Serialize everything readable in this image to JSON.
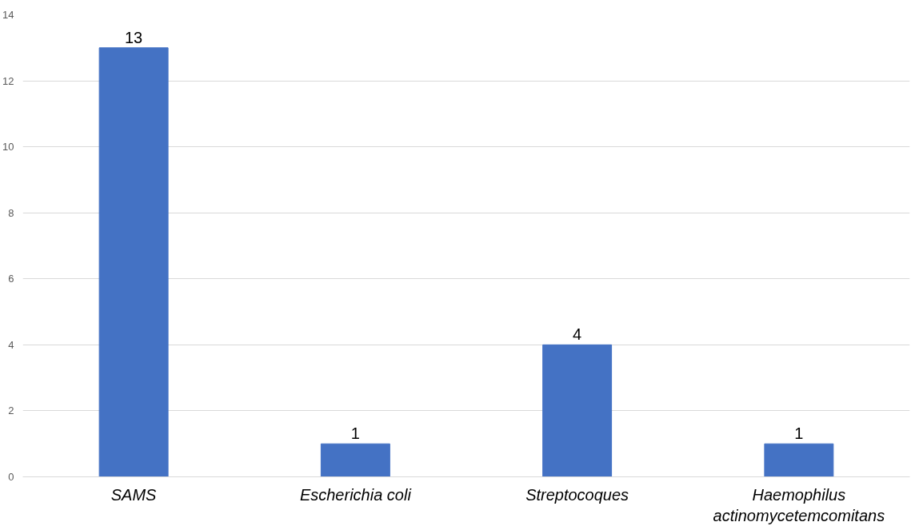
{
  "chart_data": {
    "type": "bar",
    "categories": [
      "SAMS",
      "Escherichia coli",
      "Streptocoques",
      "Haemophilus actinomycetemcomitans"
    ],
    "values": [
      13,
      1,
      4,
      1
    ],
    "color": "#4472c4",
    "ylim": [
      0,
      14
    ],
    "yticks": [
      0,
      2,
      4,
      6,
      8,
      10,
      12,
      14
    ],
    "grid": "y",
    "data_labels": true
  }
}
